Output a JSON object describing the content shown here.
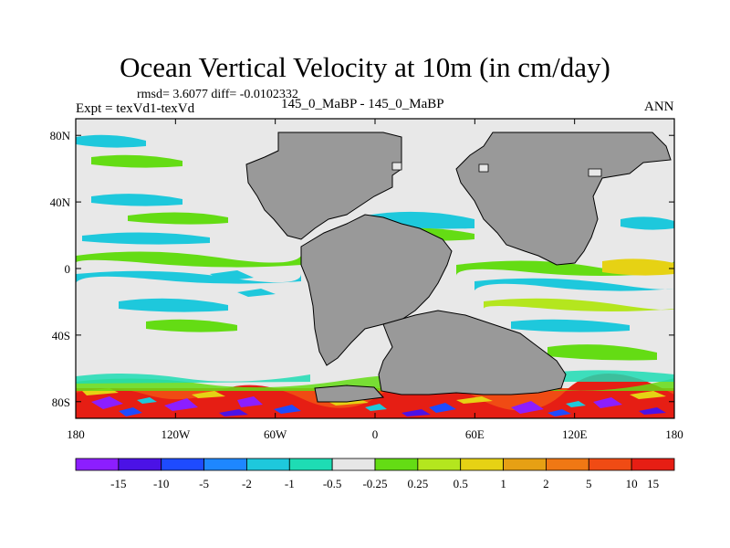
{
  "title": "Ocean Vertical Velocity at 10m (in cm/day)",
  "stats": "rmsd= 3.6077 diff= -0.0102332",
  "expt": "Expt = texVd1-texVd",
  "case": "145_0_MaBP - 145_0_MaBP",
  "season": "ANN",
  "map": {
    "lon_range": [
      -180,
      180
    ],
    "lat_range": [
      -90,
      90
    ],
    "lat_ticks": [
      {
        "value": 80,
        "label": "80N"
      },
      {
        "value": 40,
        "label": "40N"
      },
      {
        "value": 0,
        "label": "0"
      },
      {
        "value": -40,
        "label": "40S"
      },
      {
        "value": -80,
        "label": "80S"
      }
    ],
    "lon_ticks": [
      {
        "value": -180,
        "label": "180"
      },
      {
        "value": -120,
        "label": "120W"
      },
      {
        "value": -60,
        "label": "60W"
      },
      {
        "value": 0,
        "label": "0"
      },
      {
        "value": 60,
        "label": "60E"
      },
      {
        "value": 120,
        "label": "120E"
      },
      {
        "value": 180,
        "label": "180"
      }
    ],
    "land_color": "#999999",
    "background_color": "#e8e8e8"
  },
  "colorbar": {
    "colors": [
      "#8c1eff",
      "#4b12e6",
      "#1e4bff",
      "#1e87ff",
      "#1ec8dc",
      "#1edcb4",
      "#e6e6e6",
      "#64dc14",
      "#b4e61e",
      "#e6d214",
      "#e6a014",
      "#f07814",
      "#f04b14",
      "#e61e14"
    ],
    "labels": [
      "-15",
      "-10",
      "-5",
      "-2",
      "-1",
      "-0.5",
      "-0.25",
      "0.25",
      "0.5",
      "1",
      "2",
      "5",
      "10",
      "15"
    ]
  }
}
